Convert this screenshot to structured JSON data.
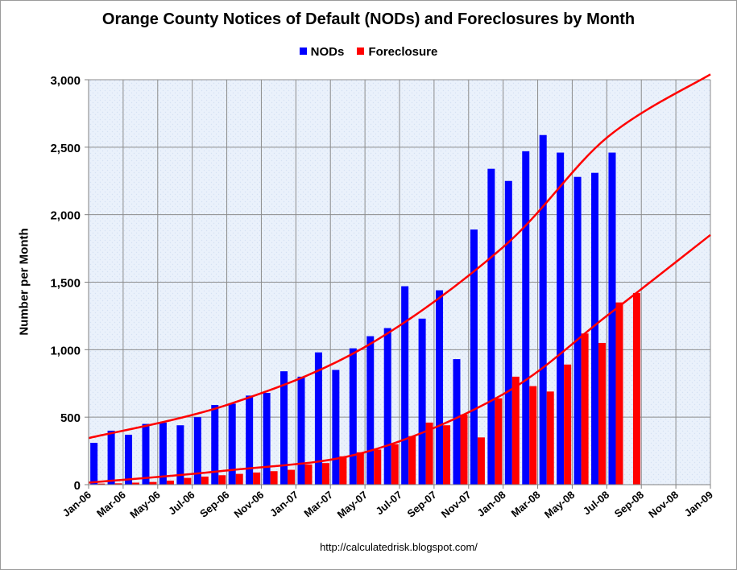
{
  "chart_data": {
    "type": "bar",
    "title": "Orange County Notices of Default (NODs) and Foreclosures by Month",
    "ylabel": "Number per Month",
    "xlabel": "",
    "ylim": [
      0,
      3000
    ],
    "y_ticks": [
      "0",
      "500",
      "1,000",
      "1,500",
      "2,000",
      "2,500",
      "3,000"
    ],
    "y_tick_values": [
      0,
      500,
      1000,
      1500,
      2000,
      2500,
      3000
    ],
    "x_tick_labels": [
      "Jan-06",
      "Mar-06",
      "May-06",
      "Jul-06",
      "Sep-06",
      "Nov-06",
      "Jan-07",
      "Mar-07",
      "May-07",
      "Jul-07",
      "Sep-07",
      "Nov-07",
      "Jan-08",
      "Mar-08",
      "May-08",
      "Jul-08",
      "Sep-08",
      "Nov-08",
      "Jan-09"
    ],
    "grid": true,
    "legend_position": "top",
    "months": [
      "Jan-06",
      "Feb-06",
      "Mar-06",
      "Apr-06",
      "May-06",
      "Jun-06",
      "Jul-06",
      "Aug-06",
      "Sep-06",
      "Oct-06",
      "Nov-06",
      "Dec-06",
      "Jan-07",
      "Feb-07",
      "Mar-07",
      "Apr-07",
      "May-07",
      "Jun-07",
      "Jul-07",
      "Aug-07",
      "Sep-07",
      "Oct-07",
      "Nov-07",
      "Dec-07",
      "Jan-08",
      "Feb-08",
      "Mar-08",
      "Apr-08",
      "May-08",
      "Jun-08",
      "Jul-08",
      "Aug-08"
    ],
    "series": [
      {
        "name": "NODs",
        "color": "#0000ff",
        "values": [
          310,
          400,
          370,
          450,
          460,
          440,
          500,
          590,
          600,
          660,
          680,
          840,
          800,
          980,
          850,
          1010,
          1100,
          1160,
          1470,
          1230,
          1440,
          930,
          1890,
          2340,
          2250,
          2470,
          2590,
          2460,
          2280,
          2310,
          2460,
          null
        ]
      },
      {
        "name": "Foreclosure",
        "color": "#ff0000",
        "values": [
          8,
          10,
          15,
          20,
          30,
          50,
          60,
          70,
          80,
          90,
          100,
          110,
          150,
          160,
          210,
          240,
          260,
          300,
          360,
          460,
          440,
          520,
          350,
          640,
          800,
          730,
          690,
          890,
          1120,
          1050,
          1350,
          1420
        ]
      }
    ],
    "trendlines": [
      {
        "color": "#ff0000",
        "month_index": [
          0,
          8,
          16,
          24,
          30,
          36
        ],
        "values": [
          345,
          590,
          1020,
          1760,
          2570,
          3040
        ]
      },
      {
        "color": "#ff0000",
        "month_index": [
          0,
          8,
          16,
          24,
          30,
          36
        ],
        "values": [
          15,
          105,
          240,
          670,
          1250,
          1850
        ]
      }
    ],
    "source": "http://calculatedrisk.blogspot.com/"
  }
}
